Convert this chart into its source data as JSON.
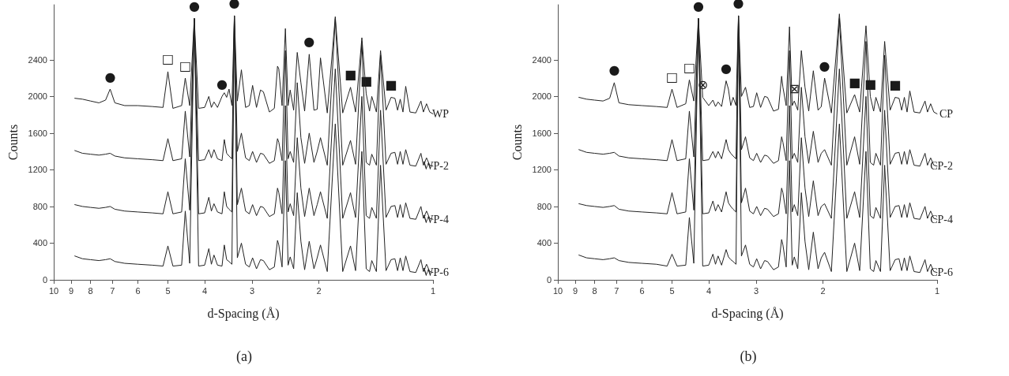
{
  "chart_data": [
    {
      "type": "line",
      "title": "(a)",
      "xlabel": "d-Spacing (Å)",
      "ylabel": "Counts",
      "log": "x",
      "grid": false,
      "legend": false,
      "xlim": [
        10,
        1
      ],
      "xticks": [
        10,
        9,
        8,
        7,
        6,
        5,
        4,
        3,
        2,
        1
      ],
      "ylim": [
        0,
        3000
      ],
      "yticks": [
        0,
        400,
        800,
        1200,
        1600,
        2000,
        2400
      ],
      "x": [
        8.8,
        8.4,
        8.0,
        7.6,
        7.3,
        7.1,
        6.9,
        6.5,
        6.0,
        5.5,
        5.15,
        5.0,
        4.85,
        4.6,
        4.5,
        4.38,
        4.26,
        4.15,
        4.0,
        3.9,
        3.84,
        3.78,
        3.7,
        3.6,
        3.55,
        3.5,
        3.45,
        3.39,
        3.34,
        3.28,
        3.2,
        3.12,
        3.05,
        2.99,
        2.92,
        2.85,
        2.8,
        2.7,
        2.62,
        2.57,
        2.55,
        2.5,
        2.45,
        2.41,
        2.38,
        2.33,
        2.28,
        2.23,
        2.18,
        2.12,
        2.06,
        2.02,
        1.98,
        1.9,
        1.81,
        1.73,
        1.65,
        1.6,
        1.54,
        1.5,
        1.47,
        1.45,
        1.41,
        1.375,
        1.33,
        1.29,
        1.26,
        1.24,
        1.22,
        1.2,
        1.18,
        1.15,
        1.11,
        1.076,
        1.06,
        1.04,
        1.02,
        1.0
      ],
      "series": [
        {
          "name": "WP",
          "color": "#222222",
          "values": [
            1980,
            1970,
            1950,
            1930,
            1960,
            2080,
            1930,
            1900,
            1900,
            1890,
            1880,
            2270,
            1870,
            1900,
            2200,
            1900,
            2850,
            1870,
            1880,
            2000,
            1880,
            1940,
            1880,
            2000,
            2040,
            1990,
            2080,
            1900,
            2880,
            1950,
            2290,
            1880,
            1900,
            2120,
            1880,
            2070,
            2050,
            1830,
            1870,
            2330,
            2300,
            1900,
            2740,
            1900,
            2070,
            1850,
            2480,
            2150,
            1840,
            2460,
            1850,
            1860,
            2420,
            1820,
            2870,
            1820,
            2100,
            1830,
            2640,
            2030,
            1840,
            2000,
            1830,
            2500,
            1850,
            1990,
            1980,
            1850,
            1970,
            1830,
            2110,
            1830,
            1820,
            1950,
            1830,
            1920,
            1830,
            1810
          ]
        },
        {
          "name": "WP-2",
          "color": "#222222",
          "values": [
            1410,
            1380,
            1370,
            1360,
            1370,
            1380,
            1350,
            1330,
            1320,
            1310,
            1300,
            1540,
            1300,
            1320,
            1840,
            1340,
            2850,
            1300,
            1310,
            1420,
            1330,
            1420,
            1320,
            1300,
            1530,
            1380,
            1350,
            1320,
            2880,
            1400,
            1600,
            1330,
            1300,
            1400,
            1280,
            1380,
            1370,
            1270,
            1300,
            1540,
            1500,
            1300,
            2500,
            1320,
            1400,
            1280,
            2150,
            1550,
            1270,
            1600,
            1280,
            1400,
            1550,
            1250,
            2850,
            1250,
            1520,
            1260,
            2600,
            1280,
            1250,
            1370,
            1250,
            2450,
            1260,
            1380,
            1390,
            1260,
            1400,
            1260,
            1420,
            1250,
            1240,
            1380,
            1250,
            1330,
            1250,
            1240
          ]
        },
        {
          "name": "WP-4",
          "color": "#222222",
          "values": [
            820,
            800,
            790,
            780,
            790,
            800,
            770,
            750,
            740,
            730,
            720,
            960,
            720,
            740,
            1320,
            760,
            2850,
            720,
            730,
            900,
            750,
            830,
            740,
            720,
            960,
            800,
            770,
            740,
            2880,
            820,
            1000,
            750,
            720,
            820,
            700,
            800,
            790,
            690,
            720,
            1000,
            950,
            720,
            1900,
            740,
            830,
            700,
            1550,
            1000,
            690,
            1000,
            700,
            820,
            960,
            670,
            2300,
            670,
            950,
            680,
            2000,
            700,
            670,
            790,
            670,
            1850,
            680,
            800,
            810,
            680,
            820,
            680,
            840,
            670,
            660,
            800,
            670,
            750,
            670,
            660
          ]
        },
        {
          "name": "WP-6",
          "color": "#222222",
          "values": [
            260,
            230,
            220,
            210,
            220,
            230,
            200,
            180,
            170,
            160,
            150,
            370,
            150,
            160,
            750,
            180,
            2850,
            150,
            160,
            340,
            170,
            270,
            160,
            150,
            380,
            220,
            200,
            170,
            2880,
            240,
            400,
            170,
            140,
            240,
            120,
            220,
            210,
            110,
            140,
            430,
            380,
            140,
            1300,
            160,
            250,
            120,
            950,
            420,
            110,
            420,
            120,
            240,
            380,
            90,
            1700,
            90,
            370,
            100,
            1400,
            120,
            90,
            210,
            90,
            1250,
            100,
            220,
            230,
            100,
            240,
            100,
            260,
            90,
            80,
            220,
            90,
            170,
            90,
            80
          ]
        }
      ],
      "annotations": [
        {
          "text": "●",
          "x": 7.1,
          "y": 2080
        },
        {
          "text": "□",
          "x": 5.0,
          "y": 2270
        },
        {
          "text": "□",
          "x": 4.5,
          "y": 2200
        },
        {
          "text": "●",
          "x": 4.26,
          "y": 2850
        },
        {
          "text": "●",
          "x": 3.6,
          "y": 2000
        },
        {
          "text": "●",
          "x": 3.34,
          "y": 2880
        },
        {
          "text": "●",
          "x": 2.12,
          "y": 2460
        },
        {
          "text": "■",
          "x": 1.65,
          "y": 2100
        },
        {
          "text": "■",
          "x": 1.5,
          "y": 2030
        },
        {
          "text": "■",
          "x": 1.29,
          "y": 1990
        }
      ]
    },
    {
      "type": "line",
      "title": "(b)",
      "xlabel": "d-Spacing (Å)",
      "ylabel": "Counts",
      "log": "x",
      "grid": false,
      "legend": false,
      "xlim": [
        10,
        1
      ],
      "xticks": [
        10,
        9,
        8,
        7,
        6,
        5,
        4,
        3,
        2,
        1
      ],
      "ylim": [
        0,
        3000
      ],
      "yticks": [
        0,
        400,
        800,
        1200,
        1600,
        2000,
        2400
      ],
      "x": [
        8.8,
        8.4,
        8.0,
        7.6,
        7.3,
        7.1,
        6.9,
        6.5,
        6.0,
        5.5,
        5.15,
        5.0,
        4.85,
        4.6,
        4.5,
        4.38,
        4.26,
        4.15,
        4.0,
        3.9,
        3.84,
        3.78,
        3.7,
        3.6,
        3.55,
        3.5,
        3.45,
        3.39,
        3.34,
        3.28,
        3.2,
        3.12,
        3.05,
        2.99,
        2.92,
        2.85,
        2.8,
        2.7,
        2.62,
        2.57,
        2.55,
        2.5,
        2.45,
        2.41,
        2.38,
        2.33,
        2.28,
        2.23,
        2.18,
        2.12,
        2.06,
        2.02,
        1.98,
        1.9,
        1.81,
        1.73,
        1.65,
        1.6,
        1.54,
        1.5,
        1.47,
        1.45,
        1.41,
        1.375,
        1.33,
        1.29,
        1.26,
        1.24,
        1.22,
        1.2,
        1.18,
        1.15,
        1.11,
        1.076,
        1.06,
        1.04,
        1.02,
        1.0
      ],
      "series": [
        {
          "name": "CP",
          "color": "#222222",
          "values": [
            1990,
            1970,
            1960,
            1950,
            1980,
            2150,
            1930,
            1910,
            1900,
            1890,
            1880,
            2080,
            1880,
            1920,
            2180,
            1950,
            2850,
            1990,
            1900,
            1960,
            1890,
            1940,
            1890,
            2170,
            2080,
            1900,
            1990,
            1900,
            2880,
            2000,
            2100,
            1880,
            1890,
            2040,
            1880,
            2000,
            1990,
            1840,
            1860,
            2220,
            2100,
            1900,
            2760,
            1900,
            1950,
            1850,
            2500,
            2100,
            1840,
            2280,
            1850,
            1890,
            2200,
            1820,
            2900,
            1820,
            2020,
            1830,
            2770,
            2000,
            1840,
            1990,
            1830,
            2600,
            1850,
            1990,
            1980,
            1850,
            1990,
            1830,
            2060,
            1830,
            1820,
            1950,
            1830,
            1920,
            1830,
            1810
          ]
        },
        {
          "name": "CP-2",
          "color": "#222222",
          "values": [
            1420,
            1390,
            1380,
            1370,
            1380,
            1390,
            1350,
            1330,
            1320,
            1310,
            1300,
            1530,
            1300,
            1320,
            1840,
            1340,
            2850,
            1300,
            1310,
            1400,
            1330,
            1400,
            1320,
            1530,
            1420,
            1380,
            1350,
            1320,
            2880,
            1420,
            1560,
            1330,
            1300,
            1380,
            1280,
            1360,
            1350,
            1270,
            1300,
            1560,
            1500,
            1300,
            2500,
            1320,
            1380,
            1280,
            2100,
            1560,
            1270,
            1620,
            1280,
            1380,
            1420,
            1250,
            2850,
            1250,
            1560,
            1260,
            2600,
            1280,
            1250,
            1380,
            1250,
            2450,
            1260,
            1380,
            1390,
            1260,
            1400,
            1260,
            1420,
            1250,
            1240,
            1380,
            1250,
            1330,
            1250,
            1240
          ]
        },
        {
          "name": "CP-4",
          "color": "#222222",
          "values": [
            830,
            810,
            800,
            790,
            800,
            810,
            770,
            750,
            740,
            730,
            720,
            950,
            720,
            740,
            1320,
            760,
            2850,
            720,
            730,
            860,
            750,
            820,
            740,
            960,
            840,
            800,
            770,
            740,
            2880,
            840,
            1000,
            750,
            720,
            800,
            700,
            780,
            770,
            690,
            720,
            1000,
            950,
            720,
            1900,
            740,
            820,
            700,
            1550,
            1000,
            690,
            1080,
            700,
            800,
            830,
            670,
            2300,
            670,
            960,
            680,
            2000,
            700,
            670,
            790,
            670,
            1850,
            680,
            800,
            810,
            680,
            820,
            680,
            840,
            670,
            660,
            800,
            670,
            750,
            670,
            660
          ]
        },
        {
          "name": "CP-6",
          "color": "#222222",
          "values": [
            270,
            240,
            230,
            220,
            230,
            240,
            210,
            190,
            180,
            170,
            150,
            280,
            150,
            160,
            680,
            180,
            2850,
            150,
            160,
            280,
            170,
            260,
            160,
            330,
            250,
            220,
            200,
            170,
            2880,
            260,
            380,
            170,
            140,
            230,
            120,
            210,
            200,
            110,
            140,
            440,
            380,
            140,
            1300,
            160,
            250,
            120,
            950,
            420,
            110,
            520,
            120,
            240,
            300,
            90,
            1700,
            90,
            400,
            100,
            1400,
            120,
            90,
            210,
            90,
            1250,
            100,
            220,
            230,
            100,
            240,
            100,
            260,
            90,
            80,
            220,
            90,
            170,
            90,
            80
          ]
        }
      ],
      "annotations": [
        {
          "text": "●",
          "x": 7.1,
          "y": 2150
        },
        {
          "text": "□",
          "x": 5.0,
          "y": 2080
        },
        {
          "text": "□",
          "x": 4.5,
          "y": 2180
        },
        {
          "text": "⊗",
          "x": 4.15,
          "y": 1990
        },
        {
          "text": "●",
          "x": 4.26,
          "y": 2850
        },
        {
          "text": "●",
          "x": 3.6,
          "y": 2170
        },
        {
          "text": "●",
          "x": 3.34,
          "y": 2880
        },
        {
          "text": "⊠",
          "x": 2.38,
          "y": 1950
        },
        {
          "text": "●",
          "x": 1.98,
          "y": 2200
        },
        {
          "text": "■",
          "x": 1.65,
          "y": 2020
        },
        {
          "text": "■",
          "x": 1.5,
          "y": 2000
        },
        {
          "text": "■",
          "x": 1.29,
          "y": 1990
        }
      ]
    }
  ]
}
